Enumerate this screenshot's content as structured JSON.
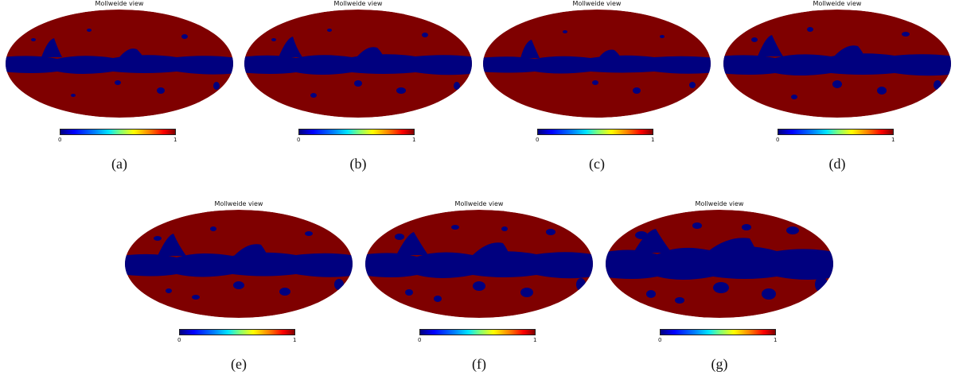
{
  "map_title": "Mollweide view",
  "colorbar": {
    "min_label": "0",
    "max_label": "1",
    "colormap": "jet"
  },
  "colors": {
    "mask": "#7f0000",
    "unmasked": "#00007f"
  },
  "panels": [
    {
      "caption": "(a)"
    },
    {
      "caption": "(b)"
    },
    {
      "caption": "(c)"
    },
    {
      "caption": "(d)"
    },
    {
      "caption": "(e)"
    },
    {
      "caption": "(f)"
    },
    {
      "caption": "(g)"
    }
  ]
}
